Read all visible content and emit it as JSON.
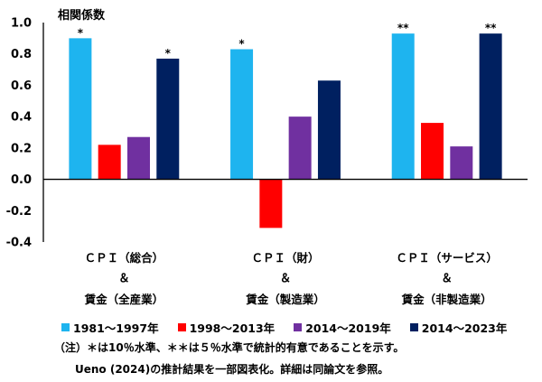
{
  "chart_data": {
    "type": "bar",
    "ylabel": "相関係数",
    "ylim": [
      -0.4,
      1.0
    ],
    "yticks": [
      1.0,
      0.8,
      0.6,
      0.4,
      0.2,
      0.0,
      -0.2,
      -0.4
    ],
    "ytick_labels": [
      "1.0",
      "0.8",
      "0.6",
      "0.4",
      "0.2",
      "0.0",
      "-0.2",
      "-0.4"
    ],
    "grid": false,
    "legend_position": "bottom",
    "categories": [
      {
        "lines": [
          "ＣＰＩ（総合）",
          "＆",
          "賃金（全産業）"
        ]
      },
      {
        "lines": [
          "ＣＰＩ（財）",
          "＆",
          "賃金（製造業）"
        ]
      },
      {
        "lines": [
          "ＣＰＩ（サービス）",
          "＆",
          "賃金（非製造業）"
        ]
      }
    ],
    "series": [
      {
        "name": "1981～1997年",
        "color": "#1eb4ef",
        "values": [
          0.9,
          0.83,
          0.93
        ],
        "significance": [
          "*",
          "*",
          "**"
        ]
      },
      {
        "name": "1998～2013年",
        "color": "#ff0000",
        "values": [
          0.22,
          -0.31,
          0.36
        ],
        "significance": [
          "",
          "",
          ""
        ]
      },
      {
        "name": "2014～2019年",
        "color": "#7030a0",
        "values": [
          0.27,
          0.4,
          0.21
        ],
        "significance": [
          "",
          "",
          ""
        ]
      },
      {
        "name": "2014～2023年",
        "color": "#002060",
        "values": [
          0.77,
          0.63,
          0.93
        ],
        "significance": [
          "*",
          "",
          "**"
        ]
      }
    ]
  },
  "notes": {
    "line1": "（注）＊は10％水準、＊＊は５％水準で統計的有意であることを示す。",
    "line2": "Ueno (2024)の推計結果を一部図表化。詳細は同論文を参照。"
  }
}
